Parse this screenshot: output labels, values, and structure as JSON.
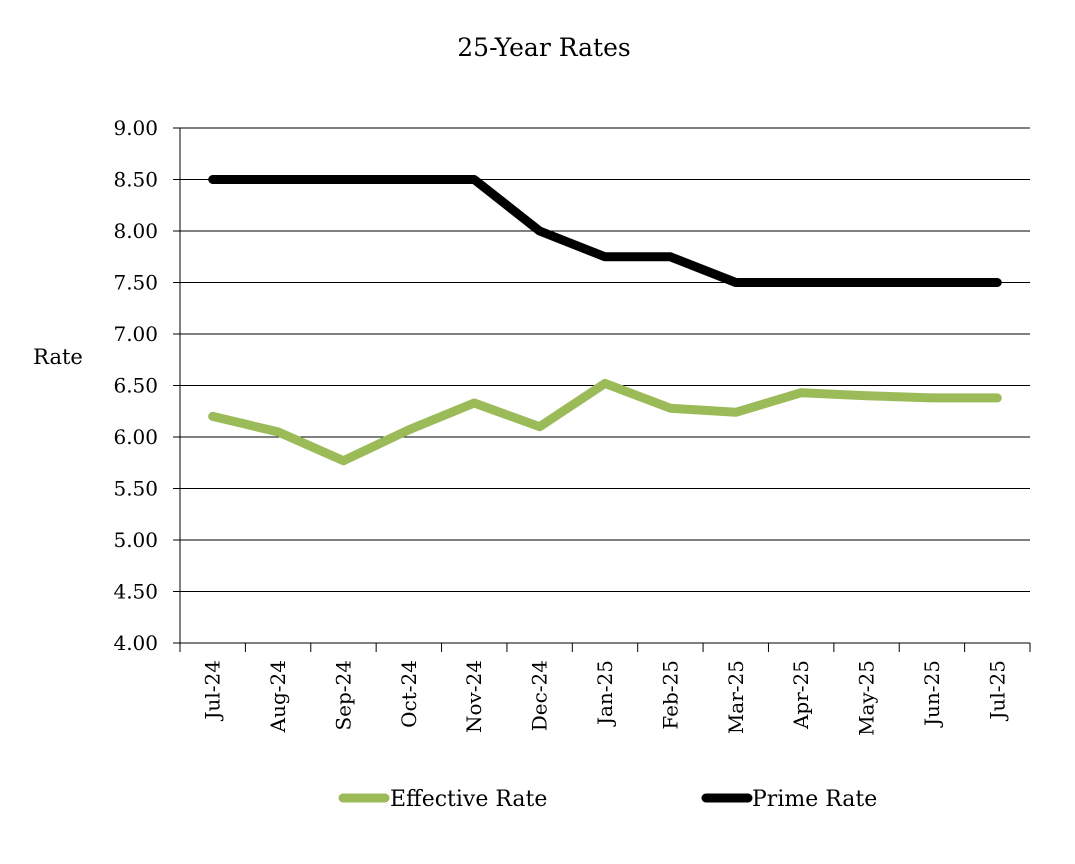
{
  "chart_data": {
    "type": "line",
    "title": "25-Year Rates",
    "xlabel": "",
    "ylabel": "Rate",
    "categories": [
      "Jul-24",
      "Aug-24",
      "Sep-24",
      "Oct-24",
      "Nov-24",
      "Dec-24",
      "Jan-25",
      "Feb-25",
      "Mar-25",
      "Apr-25",
      "May-25",
      "Jun-25",
      "Jul-25"
    ],
    "y_ticks": [
      "4.00",
      "4.50",
      "5.00",
      "5.50",
      "6.00",
      "6.50",
      "7.00",
      "7.50",
      "8.00",
      "8.50",
      "9.00"
    ],
    "ylim": [
      4.0,
      9.0
    ],
    "grid": true,
    "legend_position": "bottom",
    "series": [
      {
        "name": "Effective Rate",
        "color": "#9bbb59",
        "values": [
          6.2,
          6.05,
          5.77,
          6.07,
          6.33,
          6.1,
          6.52,
          6.28,
          6.24,
          6.43,
          6.4,
          6.38,
          6.38
        ]
      },
      {
        "name": "Prime Rate",
        "color": "#000000",
        "values": [
          8.5,
          8.5,
          8.5,
          8.5,
          8.5,
          8.0,
          7.75,
          7.75,
          7.5,
          7.5,
          7.5,
          7.5,
          7.5
        ]
      }
    ]
  }
}
